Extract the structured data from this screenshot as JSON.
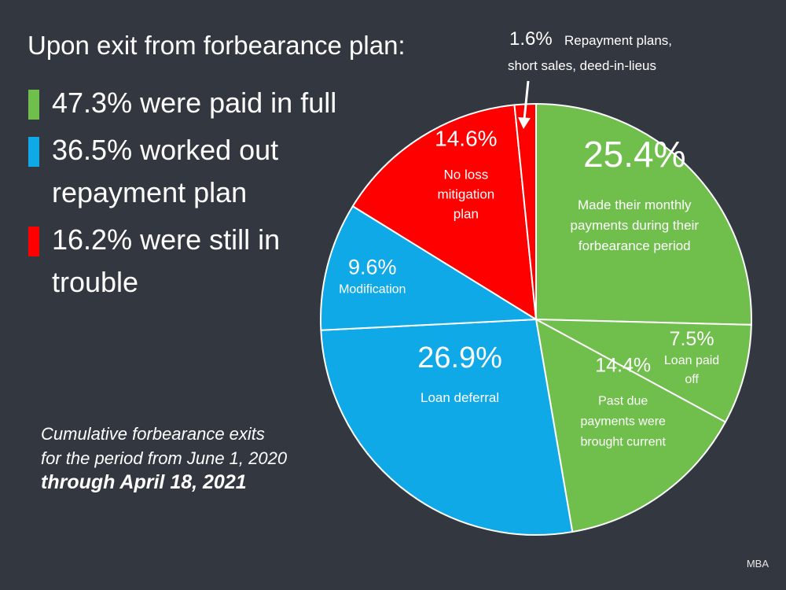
{
  "title": "Upon exit from forbearance plan:",
  "legend": [
    {
      "text": "47.3% were paid in full",
      "color": "#70BF4C"
    },
    {
      "text": "36.5% worked out repayment plan",
      "color": "#10A9E8"
    },
    {
      "text": "16.2% were still in trouble",
      "color": "#FF0000"
    }
  ],
  "footnote": {
    "line1": "Cumulative forbearance exits",
    "line2": "for the period from June 1, 2020",
    "line3": "through April 18, 2021"
  },
  "source": "MBA",
  "chart_data": {
    "type": "pie",
    "start": "12 o'clock, clockwise",
    "slices": [
      {
        "value": 25.4,
        "pct": "25.4%",
        "label_lines": [
          "Made their monthly",
          "payments during their",
          "forbearance period"
        ],
        "color": "#70BF4C"
      },
      {
        "value": 7.5,
        "pct": "7.5%",
        "label_lines": [
          "Loan paid",
          "off"
        ],
        "color": "#70BF4C"
      },
      {
        "value": 14.4,
        "pct": "14.4%",
        "label_lines": [
          "Past due",
          "payments were",
          "brought current"
        ],
        "color": "#70BF4C"
      },
      {
        "value": 26.9,
        "pct": "26.9%",
        "label_lines": [
          "Loan deferral"
        ],
        "color": "#10A9E8"
      },
      {
        "value": 9.6,
        "pct": "9.6%",
        "label_lines": [
          "Modification"
        ],
        "color": "#10A9E8"
      },
      {
        "value": 14.6,
        "pct": "14.6%",
        "label_lines": [
          "No loss",
          "mitigation",
          "plan"
        ],
        "color": "#FF0000"
      },
      {
        "value": 1.6,
        "pct": "1.6%",
        "label_lines": [
          "Repayment plans,",
          "short sales, deed-in-lieus"
        ],
        "color": "#FF0000"
      }
    ]
  }
}
